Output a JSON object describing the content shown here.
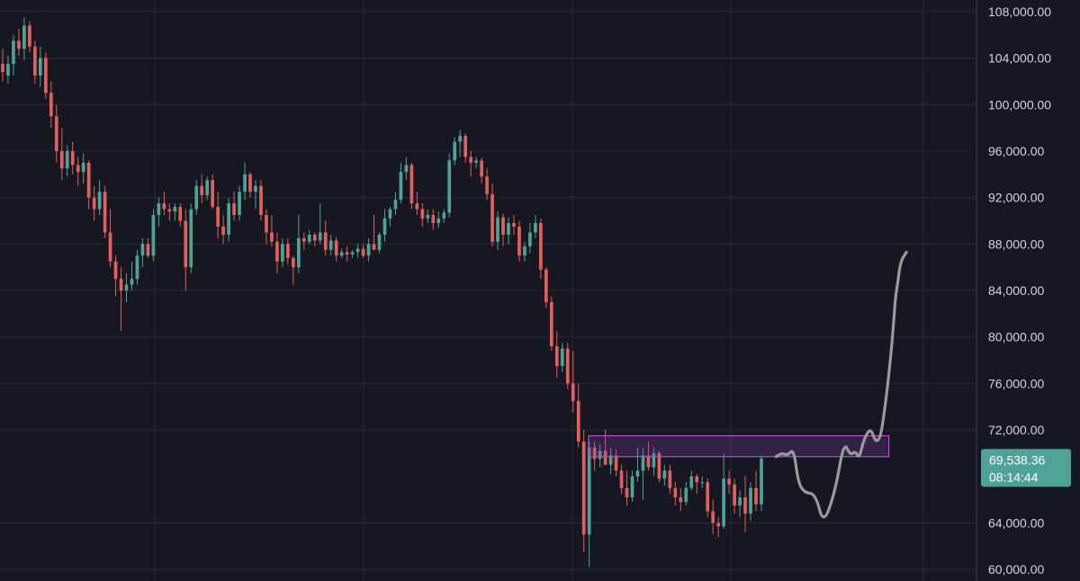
{
  "chart_data": {
    "type": "candlestick",
    "y_axis": {
      "min": 59000,
      "max": 109000,
      "position": "right",
      "ticks": [
        108000,
        104000,
        100000,
        96000,
        92000,
        88000,
        84000,
        80000,
        76000,
        72000,
        64000,
        60000
      ],
      "tick_labels": [
        "108,000.00",
        "104,000.00",
        "100,000.00",
        "96,000.00",
        "92,000.00",
        "88,000.00",
        "84,000.00",
        "80,000.00",
        "76,000.00",
        "72,000.00",
        "64,000.00",
        "60,000.00"
      ]
    },
    "grid": true,
    "vertical_grid_count": 5,
    "candles": [
      [
        103500,
        104800,
        102000,
        102800
      ],
      [
        102500,
        104200,
        101800,
        103500
      ],
      [
        103500,
        106000,
        102500,
        105500
      ],
      [
        105500,
        106500,
        104200,
        104800
      ],
      [
        104800,
        107500,
        103800,
        106800
      ],
      [
        106800,
        107200,
        104500,
        105000
      ],
      [
        105000,
        105500,
        101800,
        102500
      ],
      [
        102500,
        105000,
        101500,
        104000
      ],
      [
        104000,
        104500,
        100500,
        101000
      ],
      [
        101000,
        102000,
        98000,
        99000
      ],
      [
        99000,
        100000,
        95000,
        96000
      ],
      [
        96000,
        98000,
        93500,
        94500
      ],
      [
        94500,
        96500,
        93800,
        96000
      ],
      [
        96000,
        96800,
        94000,
        94800
      ],
      [
        94800,
        95500,
        93000,
        94200
      ],
      [
        94200,
        95800,
        93200,
        95000
      ],
      [
        95000,
        95200,
        91000,
        92000
      ],
      [
        92000,
        93000,
        90000,
        91000
      ],
      [
        91000,
        93500,
        90500,
        92500
      ],
      [
        92500,
        93000,
        88500,
        89000
      ],
      [
        89000,
        91000,
        86000,
        86500
      ],
      [
        86500,
        87000,
        83500,
        85000
      ],
      [
        85000,
        86000,
        80500,
        84000
      ],
      [
        84000,
        85500,
        83000,
        84500
      ],
      [
        84500,
        86500,
        84000,
        85000
      ],
      [
        85000,
        87500,
        84500,
        87000
      ],
      [
        87000,
        88500,
        86000,
        88000
      ],
      [
        88000,
        88500,
        86800,
        87000
      ],
      [
        87000,
        91000,
        86500,
        90500
      ],
      [
        90500,
        92000,
        89500,
        91500
      ],
      [
        91500,
        92500,
        90500,
        91000
      ],
      [
        91000,
        91500,
        90000,
        90800
      ],
      [
        90800,
        91500,
        90000,
        91200
      ],
      [
        91200,
        91500,
        89500,
        90000
      ],
      [
        90000,
        91000,
        84000,
        86000
      ],
      [
        86000,
        91500,
        85500,
        91000
      ],
      [
        91000,
        93500,
        90500,
        93000
      ],
      [
        93000,
        94000,
        91500,
        92200
      ],
      [
        92200,
        93800,
        91800,
        93500
      ],
      [
        93500,
        94000,
        91000,
        91200
      ],
      [
        91200,
        92500,
        88500,
        89500
      ],
      [
        89500,
        90500,
        88000,
        88800
      ],
      [
        88800,
        92000,
        88200,
        91500
      ],
      [
        91500,
        92500,
        90000,
        90500
      ],
      [
        90500,
        93000,
        90000,
        92500
      ],
      [
        92500,
        95000,
        91800,
        94000
      ],
      [
        94000,
        94200,
        92000,
        92500
      ],
      [
        92500,
        93500,
        91000,
        93000
      ],
      [
        93000,
        93500,
        90000,
        90500
      ],
      [
        90500,
        91000,
        88000,
        89000
      ],
      [
        89000,
        90500,
        87800,
        88200
      ],
      [
        88200,
        89000,
        85500,
        86500
      ],
      [
        86500,
        88500,
        86000,
        88000
      ],
      [
        88000,
        88500,
        86200,
        86800
      ],
      [
        86800,
        87000,
        84500,
        86000
      ],
      [
        86000,
        90500,
        85500,
        88500
      ],
      [
        88500,
        89000,
        87500,
        88200
      ],
      [
        88200,
        89200,
        88000,
        88800
      ],
      [
        88800,
        89000,
        87800,
        88300
      ],
      [
        88300,
        91500,
        88000,
        89000
      ],
      [
        89000,
        90000,
        87000,
        87500
      ],
      [
        87500,
        88800,
        87000,
        88300
      ],
      [
        88300,
        88600,
        86500,
        87000
      ],
      [
        87000,
        87600,
        86800,
        87300
      ],
      [
        87300,
        87800,
        86500,
        87100
      ],
      [
        87100,
        87500,
        86800,
        87300
      ],
      [
        87300,
        88000,
        86800,
        87600
      ],
      [
        87600,
        88000,
        86800,
        87000
      ],
      [
        87000,
        88500,
        86500,
        88000
      ],
      [
        88000,
        90500,
        87500,
        87500
      ],
      [
        87500,
        89000,
        87200,
        88800
      ],
      [
        88800,
        91000,
        88200,
        90200
      ],
      [
        90200,
        91200,
        89500,
        91000
      ],
      [
        91000,
        92500,
        90500,
        91800
      ],
      [
        91800,
        95000,
        91500,
        94200
      ],
      [
        94200,
        95500,
        93500,
        94800
      ],
      [
        94800,
        95000,
        91000,
        91500
      ],
      [
        91500,
        92500,
        90500,
        91000
      ],
      [
        91000,
        91500,
        89500,
        90200
      ],
      [
        90200,
        91000,
        89800,
        90500
      ],
      [
        90500,
        91000,
        89200,
        89800
      ],
      [
        89800,
        90800,
        89400,
        90200
      ],
      [
        90200,
        91000,
        89800,
        90700
      ],
      [
        90700,
        95800,
        90300,
        95200
      ],
      [
        95200,
        97200,
        94800,
        96800
      ],
      [
        96800,
        97800,
        95500,
        97300
      ],
      [
        97300,
        97500,
        95000,
        95500
      ],
      [
        95500,
        96000,
        93800,
        95000
      ],
      [
        95000,
        95500,
        94500,
        95200
      ],
      [
        95200,
        95400,
        93200,
        93800
      ],
      [
        93800,
        94500,
        91800,
        92300
      ],
      [
        92300,
        93200,
        87800,
        88200
      ],
      [
        88200,
        90800,
        87500,
        90300
      ],
      [
        90300,
        90600,
        87800,
        88800
      ],
      [
        88800,
        90300,
        88000,
        89800
      ],
      [
        89800,
        90500,
        88800,
        89500
      ],
      [
        89500,
        90000,
        86500,
        87000
      ],
      [
        87000,
        88200,
        86500,
        87800
      ],
      [
        87800,
        89800,
        87200,
        89000
      ],
      [
        89000,
        90500,
        88500,
        89800
      ],
      [
        89800,
        90200,
        85000,
        85800
      ],
      [
        85800,
        86000,
        82500,
        83000
      ],
      [
        83000,
        83500,
        78800,
        79200
      ],
      [
        79200,
        80500,
        76500,
        77500
      ],
      [
        77500,
        79500,
        77000,
        79000
      ],
      [
        79000,
        79500,
        75500,
        76000
      ],
      [
        76000,
        78800,
        73500,
        74500
      ],
      [
        74500,
        76000,
        70500,
        71000
      ],
      [
        71000,
        72000,
        61500,
        63000
      ],
      [
        63000,
        71000,
        60200,
        70500
      ],
      [
        70500,
        71000,
        68500,
        69500
      ],
      [
        69500,
        70800,
        68800,
        70200
      ],
      [
        70200,
        72000,
        69000,
        69000
      ],
      [
        69000,
        70500,
        68200,
        69800
      ],
      [
        69800,
        70300,
        68000,
        68500
      ],
      [
        68500,
        69000,
        66500,
        67000
      ],
      [
        67000,
        68500,
        65500,
        66200
      ],
      [
        66200,
        68500,
        65800,
        68000
      ],
      [
        68000,
        70500,
        67500,
        68500
      ],
      [
        68500,
        70500,
        66000,
        69800
      ],
      [
        69800,
        71000,
        68500,
        68800
      ],
      [
        68800,
        70500,
        68000,
        70000
      ],
      [
        70000,
        70200,
        67500,
        67800
      ],
      [
        67800,
        69000,
        67200,
        68500
      ],
      [
        68500,
        69000,
        66500,
        67000
      ],
      [
        67000,
        67500,
        65500,
        66200
      ],
      [
        66200,
        67000,
        65000,
        65800
      ],
      [
        65800,
        67500,
        65500,
        67000
      ],
      [
        67000,
        68500,
        66800,
        68000
      ],
      [
        68000,
        68200,
        66500,
        67500
      ],
      [
        67500,
        68000,
        67000,
        67500
      ],
      [
        67500,
        67800,
        64500,
        65000
      ],
      [
        65000,
        66000,
        63000,
        64000
      ],
      [
        64000,
        64500,
        62800,
        63700
      ],
      [
        63700,
        70000,
        63500,
        67800
      ],
      [
        67800,
        68500,
        66500,
        67300
      ],
      [
        67300,
        67800,
        64800,
        65500
      ],
      [
        65500,
        66800,
        64500,
        66200
      ],
      [
        66200,
        68000,
        63200,
        64800
      ],
      [
        64800,
        67500,
        64200,
        67000
      ],
      [
        67000,
        68500,
        65000,
        65600
      ],
      [
        65600,
        69800,
        65000,
        69538
      ]
    ],
    "resistance_zone": {
      "low": 69700,
      "high": 71500,
      "x_start": 0.545,
      "x_end": 0.823
    },
    "projection": [
      [
        0.001,
        69700
      ],
      [
        0.024,
        70000
      ],
      [
        0.048,
        69800
      ],
      [
        0.072,
        70400
      ],
      [
        0.09,
        67500
      ],
      [
        0.115,
        66600
      ],
      [
        0.16,
        66500
      ],
      [
        0.192,
        63800
      ],
      [
        0.24,
        66800
      ],
      [
        0.274,
        71000
      ],
      [
        0.3,
        69800
      ],
      [
        0.32,
        70200
      ],
      [
        0.336,
        69500
      ],
      [
        0.354,
        71200
      ],
      [
        0.382,
        72200
      ],
      [
        0.4,
        71000
      ],
      [
        0.42,
        71200
      ],
      [
        0.437,
        73500
      ],
      [
        0.454,
        76500
      ],
      [
        0.47,
        80000
      ],
      [
        0.482,
        83500
      ],
      [
        0.49,
        84500
      ],
      [
        0.502,
        86500
      ],
      [
        0.526,
        87300
      ]
    ],
    "current_price": {
      "value": "69,538.36",
      "countdown": "08:14:44"
    }
  },
  "colors": {
    "background": "#161720",
    "grid": "#262833",
    "axis_separator": "#363a45",
    "bull": "#4fa396",
    "bear": "#e0605d",
    "zone_fill": "#8d3fb8",
    "zone_border": "#b24edc",
    "projection": "#9a9a9c",
    "badge": "#4fa396",
    "tick_text": "#d1d4dc"
  }
}
